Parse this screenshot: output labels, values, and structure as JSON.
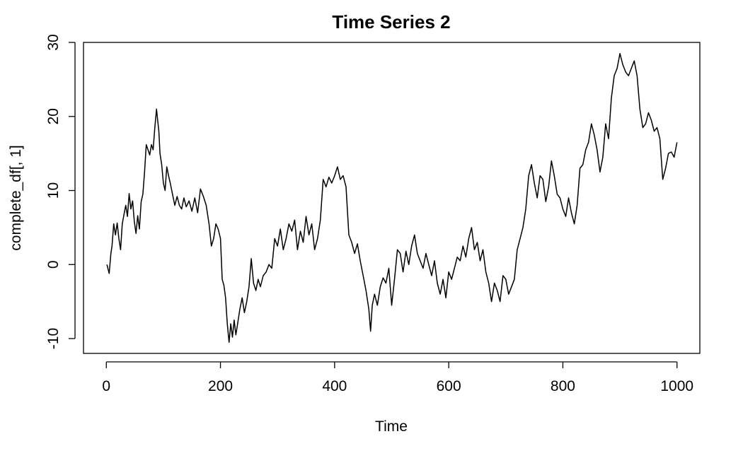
{
  "chart_data": {
    "type": "line",
    "title": "Time Series 2",
    "xlabel": "Time",
    "ylabel": "complete_df[, 1]",
    "xlim": [
      -40,
      1040
    ],
    "ylim": [
      -12,
      30
    ],
    "xticks": [
      0,
      200,
      400,
      600,
      800,
      1000
    ],
    "xtick_labels": [
      "0",
      "200",
      "400",
      "600",
      "800",
      "1000"
    ],
    "yticks": [
      -10,
      0,
      10,
      20,
      30
    ],
    "ytick_labels": [
      "-10",
      "0",
      "10",
      "20",
      "30"
    ],
    "grid": false,
    "legend": "none",
    "line_color": "#000000",
    "series": [
      {
        "x": [
          1,
          5,
          8,
          10,
          13,
          16,
          19,
          22,
          25,
          28,
          31,
          34,
          37,
          40,
          43,
          46,
          49,
          52,
          55,
          58,
          61,
          64,
          67,
          70,
          73,
          76,
          79,
          82,
          85,
          88,
          90,
          92,
          94,
          97,
          100,
          103,
          106,
          109,
          112,
          116,
          120,
          124,
          128,
          132,
          136,
          140,
          145,
          150,
          155,
          160,
          165,
          170,
          175,
          180,
          184,
          188,
          192,
          196,
          200,
          203,
          206,
          209,
          212,
          215,
          218,
          221,
          224,
          227,
          230,
          234,
          238,
          242,
          246,
          250,
          254,
          258,
          262,
          266,
          270,
          275,
          280,
          285,
          290,
          295,
          300,
          305,
          310,
          315,
          320,
          325,
          330,
          335,
          340,
          345,
          350,
          355,
          360,
          365,
          370,
          375,
          380,
          385,
          390,
          395,
          400,
          405,
          410,
          415,
          420,
          425,
          430,
          435,
          440,
          445,
          450,
          455,
          460,
          463,
          466,
          470,
          475,
          480,
          485,
          490,
          495,
          500,
          505,
          510,
          515,
          520,
          525,
          530,
          535,
          540,
          545,
          550,
          555,
          560,
          565,
          570,
          575,
          580,
          585,
          590,
          595,
          600,
          605,
          610,
          615,
          620,
          625,
          630,
          635,
          640,
          645,
          650,
          655,
          660,
          665,
          670,
          675,
          680,
          685,
          690,
          695,
          700,
          705,
          710,
          715,
          720,
          725,
          730,
          735,
          740,
          745,
          750,
          755,
          760,
          765,
          770,
          775,
          780,
          785,
          790,
          795,
          800,
          805,
          810,
          815,
          820,
          825,
          830,
          835,
          840,
          845,
          850,
          855,
          860,
          865,
          870,
          875,
          880,
          885,
          890,
          895,
          900,
          905,
          910,
          915,
          920,
          925,
          930,
          935,
          940,
          945,
          950,
          955,
          960,
          965,
          970,
          975,
          980,
          985,
          990,
          995,
          1000
        ],
        "y": [
          0.0,
          -1.2,
          1.5,
          2.5,
          5.5,
          4.0,
          5.6,
          3.5,
          2.0,
          5.5,
          6.8,
          8.0,
          6.5,
          9.6,
          7.5,
          8.6,
          5.8,
          4.2,
          6.6,
          4.8,
          8.5,
          9.5,
          12.5,
          16.2,
          15.5,
          14.8,
          16.2,
          15.5,
          18.5,
          21.0,
          19.5,
          18.0,
          15.0,
          13.5,
          11.0,
          10.0,
          13.2,
          12.0,
          11.0,
          9.5,
          8.0,
          9.2,
          8.0,
          7.5,
          9.0,
          7.8,
          8.6,
          7.2,
          9.0,
          7.0,
          10.2,
          9.2,
          8.0,
          5.5,
          2.5,
          3.5,
          5.5,
          4.8,
          3.5,
          -2.0,
          -2.8,
          -4.5,
          -8.0,
          -10.5,
          -8.0,
          -9.8,
          -7.5,
          -9.5,
          -8.0,
          -6.0,
          -4.5,
          -6.5,
          -5.0,
          -3.0,
          0.8,
          -2.5,
          -3.5,
          -2.0,
          -3.0,
          -1.5,
          -1.0,
          0.0,
          -0.5,
          3.5,
          2.5,
          4.8,
          2.0,
          3.5,
          5.5,
          4.5,
          6.0,
          2.0,
          4.5,
          3.0,
          6.5,
          4.0,
          5.5,
          2.0,
          3.5,
          6.0,
          11.5,
          10.5,
          11.8,
          11.0,
          12.0,
          13.2,
          11.5,
          12.0,
          10.5,
          4.0,
          3.0,
          1.5,
          2.8,
          0.5,
          -1.5,
          -3.5,
          -6.0,
          -9.0,
          -5.5,
          -4.0,
          -5.5,
          -3.0,
          -1.8,
          -2.5,
          -0.5,
          -5.5,
          -2.0,
          2.0,
          1.5,
          -1.0,
          1.8,
          0.0,
          2.5,
          4.0,
          1.5,
          0.5,
          -0.5,
          1.5,
          0.0,
          -1.5,
          0.5,
          -2.5,
          -4.0,
          -2.0,
          -4.5,
          -1.0,
          -2.0,
          -0.5,
          1.0,
          0.5,
          2.5,
          1.0,
          3.5,
          5.0,
          2.0,
          3.0,
          0.5,
          2.0,
          -1.0,
          -2.5,
          -5.0,
          -2.5,
          -3.5,
          -5.0,
          -1.5,
          -2.0,
          -4.0,
          -3.0,
          -2.0,
          2.0,
          3.5,
          5.0,
          7.5,
          12.0,
          13.5,
          11.0,
          9.0,
          12.0,
          11.5,
          8.5,
          10.5,
          14.0,
          12.0,
          9.5,
          9.0,
          7.5,
          6.5,
          9.0,
          7.0,
          5.5,
          8.0,
          13.0,
          13.5,
          15.5,
          16.5,
          19.0,
          17.5,
          15.5,
          12.5,
          14.5,
          19.0,
          17.0,
          22.5,
          25.5,
          26.5,
          28.5,
          27.0,
          26.0,
          25.5,
          26.5,
          27.5,
          25.5,
          21.0,
          18.5,
          19.0,
          20.5,
          19.5,
          18.0,
          18.5,
          17.0,
          11.5,
          13.0,
          15.0,
          15.2,
          14.5,
          16.5
        ]
      }
    ]
  }
}
